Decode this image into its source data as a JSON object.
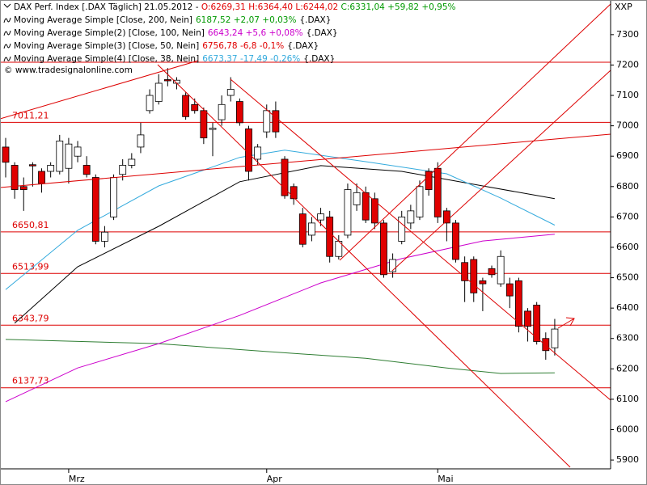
{
  "chart_data": {
    "type": "candlestick",
    "header": [
      {
        "text": "DAX Perf. Index [.DAX Täglich] 21.05.2012 - ",
        "color": "#000000"
      },
      {
        "text": "O:6269,31 H:6364,40 L:6244,02 ",
        "color": "#e00000"
      },
      {
        "text": "C:6331,04 +59,82 +0,95%",
        "color": "#009900"
      }
    ],
    "copyright": "© www.tradesignalonline.com",
    "corner_label": "XXP",
    "categories": [
      null,
      null,
      null,
      null,
      null,
      null,
      null,
      "Mrz",
      null,
      null,
      null,
      null,
      null,
      null,
      null,
      null,
      null,
      null,
      null,
      null,
      null,
      null,
      null,
      null,
      null,
      null,
      null,
      null,
      null,
      "Apr",
      null,
      null,
      null,
      null,
      null,
      null,
      null,
      null,
      null,
      null,
      null,
      null,
      null,
      null,
      null,
      null,
      null,
      null,
      "Mai",
      null,
      null,
      null,
      null,
      null,
      null,
      null,
      null,
      null,
      null,
      null,
      null,
      null
    ],
    "open": [
      6930,
      6870,
      6800,
      6872,
      6850,
      6850,
      6850,
      6860,
      6900,
      6870,
      6830,
      6620,
      6700,
      6840,
      6870,
      6930,
      7050,
      7080,
      7152,
      7140,
      7100,
      7070,
      7050,
      6988,
      7020,
      7100,
      7080,
      6990,
      6890,
      6980,
      7050,
      6890,
      6800,
      6710,
      6640,
      6690,
      6700,
      6570,
      6640,
      6740,
      6780,
      6760,
      6680,
      6520,
      6620,
      6680,
      6700,
      6850,
      6860,
      6720,
      6680,
      6550,
      6560,
      6490,
      6530,
      6480,
      6480,
      6490,
      6390,
      6410,
      6300,
      6269.31
    ],
    "high": [
      6960,
      6880,
      6830,
      6880,
      6860,
      6880,
      6970,
      6960,
      6950,
      6900,
      6840,
      6670,
      6840,
      6890,
      6910,
      7010,
      7120,
      7170,
      7190,
      7160,
      7110,
      7090,
      7060,
      7010,
      7100,
      7160,
      7090,
      7000,
      6940,
      7070,
      7080,
      6900,
      6810,
      6730,
      6700,
      6730,
      6720,
      6640,
      6810,
      6810,
      6800,
      6780,
      6690,
      6580,
      6720,
      6740,
      6820,
      6860,
      6880,
      6730,
      6690,
      6570,
      6570,
      6500,
      6540,
      6590,
      6500,
      6500,
      6400,
      6420,
      6320,
      6364.4
    ],
    "low": [
      6830,
      6760,
      6720,
      6800,
      6780,
      6830,
      6840,
      6810,
      6880,
      6830,
      6610,
      6600,
      6690,
      6820,
      6860,
      6910,
      7040,
      7070,
      7130,
      7120,
      7020,
      7040,
      6940,
      6900,
      7000,
      7080,
      7000,
      6820,
      6870,
      6960,
      6960,
      6760,
      6740,
      6600,
      6620,
      6670,
      6550,
      6560,
      6630,
      6720,
      6680,
      6660,
      6500,
      6500,
      6610,
      6660,
      6690,
      6770,
      6680,
      6620,
      6550,
      6420,
      6420,
      6390,
      6500,
      6470,
      6400,
      6320,
      6290,
      6280,
      6230,
      6244.02
    ],
    "close": [
      6880,
      6790,
      6790,
      6868,
      6810,
      6870,
      6950,
      6940,
      6930,
      6840,
      6620,
      6650,
      6830,
      6870,
      6890,
      6970,
      7100,
      7140,
      7148,
      7150,
      7030,
      7050,
      6960,
      6992,
      7070,
      7120,
      7010,
      6850,
      6930,
      7050,
      6980,
      6770,
      6760,
      6610,
      6680,
      6710,
      6570,
      6620,
      6790,
      6780,
      6690,
      6680,
      6510,
      6560,
      6700,
      6720,
      6800,
      6790,
      6700,
      6680,
      6560,
      6490,
      6450,
      6480,
      6510,
      6570,
      6440,
      6340,
      6340,
      6290,
      6260,
      6331.04
    ],
    "up_color": "#ffffff",
    "down_color": "#e00000",
    "ylim": [
      5871,
      7414
    ],
    "yticks": [
      7300,
      7200,
      7100,
      7000,
      6900,
      6800,
      6700,
      6600,
      6500,
      6400,
      6300,
      6200,
      6100,
      6000,
      5900
    ],
    "moving_averages": [
      {
        "name": "Moving Average Simple [Close, 200, Nein]",
        "stat": "6187,52 +2,07 +0,03%",
        "suffix": "{.DAX}",
        "color": "#2e7d32",
        "stat_color": "#009900",
        "x": [
          0,
          17,
          29,
          40,
          49,
          55,
          61
        ],
        "values": [
          6297,
          6283,
          6257,
          6235,
          6203,
          6185,
          6187
        ]
      },
      {
        "name": "Moving Average Simple(2) [Close, 100, Nein]",
        "stat": "6643,24 +5,6 +0,08%",
        "suffix": "{.DAX}",
        "color": "#cc00cc",
        "stat_color": "#cc00cc",
        "x": [
          0,
          8,
          17,
          26,
          35,
          44,
          53,
          61
        ],
        "values": [
          6092,
          6203,
          6283,
          6376,
          6483,
          6563,
          6621,
          6643
        ]
      },
      {
        "name": "Moving Average Simple(3) [Close, 50, Nein]",
        "stat": "6756,78 -6,8 -0,1%",
        "suffix": "{.DAX}",
        "color": "#000000",
        "stat_color": "#e00000",
        "x": [
          1,
          8,
          17,
          26,
          35,
          44,
          53,
          61
        ],
        "values": [
          6350,
          6536,
          6669,
          6816,
          6869,
          6850,
          6802,
          6760
        ]
      },
      {
        "name": "Moving Average Simple(4) [Close, 38, Nein]",
        "stat": "6673,37 -17,49 -0,26%",
        "suffix": "{.DAX}",
        "color": "#33aadd",
        "stat_color": "#33aadd",
        "x": [
          0,
          8,
          17,
          26,
          31,
          40,
          49,
          55,
          61
        ],
        "values": [
          6461,
          6656,
          6802,
          6896,
          6920,
          6882,
          6842,
          6762,
          6673
        ]
      }
    ],
    "levels": [
      {
        "value": 7011.21,
        "label": "7011,21"
      },
      {
        "value": 6650.81,
        "label": "6650,81"
      },
      {
        "value": 6513.99,
        "label": "6513,99"
      },
      {
        "value": 6343.79,
        "label": "6343,79"
      },
      {
        "value": 6137.73,
        "label": "6137,73"
      }
    ],
    "level_unlabeled": 7209,
    "level_color": "#dd0000"
  }
}
